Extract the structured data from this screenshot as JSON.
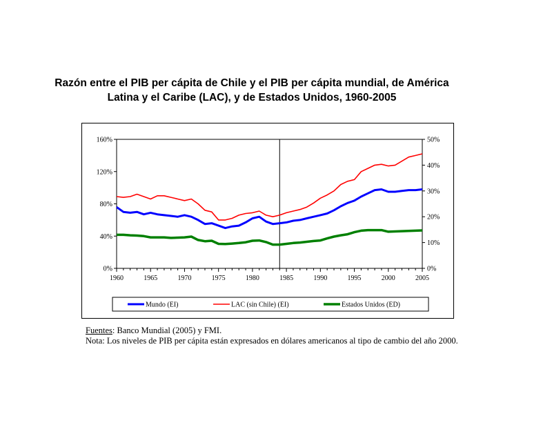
{
  "title_line1": "Razón entre el PIB per cápita de Chile y el PIB per cápita mundial, de América",
  "title_line2": "Latina y el Caribe (LAC), y de Estados Unidos, 1960-2005",
  "notes": {
    "source_label": "Fuentes",
    "source_text": ": Banco Mundial (2005) y FMI.",
    "note_text": "Nota: Los niveles de PIB per cápita están expresados en dólares americanos al tipo de cambio del año 2000."
  },
  "colors": {
    "mundo": "#0000ff",
    "lac": "#ff0000",
    "eeuu": "#008000"
  },
  "chart_data": {
    "type": "line",
    "title": "Razón entre el PIB per cápita de Chile y el PIB per cápita mundial, de América Latina y el Caribe (LAC), y de Estados Unidos, 1960-2005",
    "xlabel": "",
    "ylabel_left": "",
    "ylabel_right": "",
    "xlim": [
      1960,
      2005
    ],
    "ylim_left": [
      0,
      160
    ],
    "ylim_right": [
      0,
      50
    ],
    "xticks": [
      "1960",
      "1965",
      "1970",
      "1975",
      "1980",
      "1985",
      "1990",
      "1995",
      "2000",
      "2005"
    ],
    "yticks_left": [
      "0%",
      "40%",
      "80%",
      "120%",
      "160%"
    ],
    "yticks_right": [
      "0%",
      "10%",
      "20%",
      "30%",
      "40%",
      "50%"
    ],
    "vertical_marker_year": 1984,
    "x": [
      1960,
      1961,
      1962,
      1963,
      1964,
      1965,
      1966,
      1967,
      1968,
      1969,
      1970,
      1971,
      1972,
      1973,
      1974,
      1975,
      1976,
      1977,
      1978,
      1979,
      1980,
      1981,
      1982,
      1983,
      1984,
      1985,
      1986,
      1987,
      1988,
      1989,
      1990,
      1991,
      1992,
      1993,
      1994,
      1995,
      1996,
      1997,
      1998,
      1999,
      2000,
      2001,
      2002,
      2003,
      2004,
      2005
    ],
    "series": [
      {
        "name": "Mundo (EI)",
        "axis": "left",
        "color": "#0000ff",
        "values": [
          76,
          70,
          69,
          70,
          67,
          69,
          67,
          66,
          65,
          64,
          66,
          64,
          60,
          55,
          56,
          53,
          50,
          52,
          53,
          57,
          62,
          64,
          58,
          55,
          56,
          57,
          59,
          60,
          62,
          64,
          66,
          68,
          72,
          77,
          81,
          84,
          89,
          93,
          97,
          98,
          95,
          95,
          96,
          97,
          97,
          98
        ]
      },
      {
        "name": "LAC (sin Chile) (EI)",
        "axis": "left",
        "color": "#ff0000",
        "values": [
          89,
          88,
          89,
          92,
          89,
          86,
          90,
          90,
          88,
          86,
          84,
          86,
          80,
          72,
          70,
          60,
          60,
          62,
          66,
          68,
          69,
          71,
          66,
          64,
          66,
          69,
          71,
          73,
          76,
          81,
          87,
          91,
          96,
          104,
          108,
          110,
          120,
          124,
          128,
          129,
          127,
          128,
          133,
          138,
          140,
          142
        ]
      },
      {
        "name": "Estados Unidos (ED)",
        "axis": "right",
        "color": "#008000",
        "values": [
          13,
          13,
          12.8,
          12.7,
          12.5,
          12,
          12,
          12,
          11.8,
          11.9,
          12,
          12.3,
          11,
          10.5,
          10.7,
          9.5,
          9.4,
          9.6,
          9.8,
          10.1,
          10.7,
          10.8,
          10.2,
          9.2,
          9.2,
          9.5,
          9.8,
          10,
          10.3,
          10.6,
          10.8,
          11.6,
          12.3,
          12.8,
          13.2,
          14,
          14.6,
          14.8,
          14.8,
          14.8,
          14.2,
          14.3,
          14.4,
          14.5,
          14.6,
          14.7
        ]
      }
    ],
    "legend_position": "bottom"
  }
}
